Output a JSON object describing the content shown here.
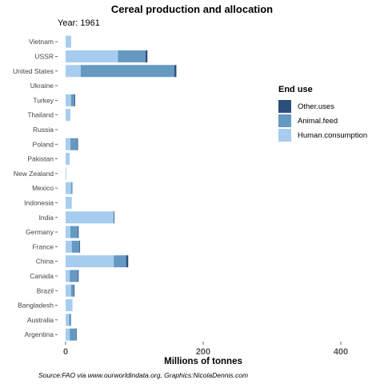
{
  "chart_data": {
    "type": "bar",
    "orientation": "horizontal",
    "stacked": true,
    "title": "Cereal production and allocation",
    "subtitle": "Year: 1961",
    "xlabel": "Millions of tonnes",
    "ylabel": "",
    "xlim": [
      0,
      420
    ],
    "xticks": [
      0,
      200,
      400
    ],
    "caption": "Source:FAO via www.ourworldindata.org, Graphics:NicolaDennis.com",
    "grid": false,
    "legend": {
      "title": "End use",
      "position": "right"
    },
    "categories": [
      "Vietnam",
      "USSR",
      "United States",
      "Ukraine",
      "Turkey",
      "Thailand",
      "Russia",
      "Poland",
      "Pakistan",
      "New Zealand",
      "Mexico",
      "Indonesia",
      "India",
      "Germany",
      "France",
      "China",
      "Canada",
      "Brazil",
      "Bangladesh",
      "Australia",
      "Argentina"
    ],
    "series": [
      {
        "name": "Human.consumption",
        "color": "#a6cdef",
        "values": [
          8,
          76,
          22,
          0,
          8,
          7,
          0,
          7,
          6,
          1,
          8,
          9,
          70,
          7,
          9,
          70,
          6,
          8,
          10,
          5,
          6
        ]
      },
      {
        "name": "Animal.feed",
        "color": "#6599c1",
        "values": [
          0,
          40,
          136,
          0,
          5,
          0,
          0,
          10,
          0,
          0,
          2,
          0,
          0,
          11,
          11,
          18,
          12,
          4,
          0,
          3,
          9
        ]
      },
      {
        "name": "Other.uses",
        "color": "#2c4f7a",
        "values": [
          0,
          3,
          3,
          0,
          1,
          0,
          0,
          1,
          0,
          0,
          0,
          0,
          1,
          1,
          1,
          3,
          1,
          1,
          0,
          0,
          1
        ]
      }
    ]
  }
}
